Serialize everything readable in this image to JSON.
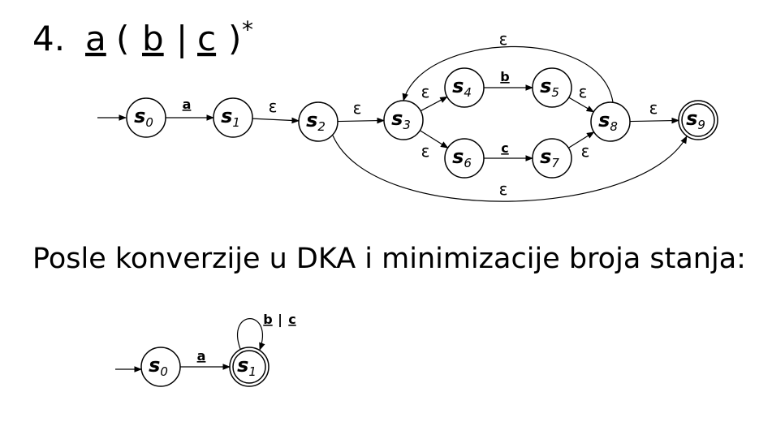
{
  "heading": {
    "number": "4.",
    "expression": [
      "a",
      "(",
      "b",
      "|",
      "c",
      ")"
    ],
    "superscript": "*"
  },
  "nfa": {
    "nodes": [
      {
        "label": "s",
        "index": "0"
      },
      {
        "label": "s",
        "index": "1"
      },
      {
        "label": "s",
        "index": "2"
      },
      {
        "label": "s",
        "index": "3"
      },
      {
        "label": "s",
        "index": "4"
      },
      {
        "label": "s",
        "index": "5"
      },
      {
        "label": "s",
        "index": "6"
      },
      {
        "label": "s",
        "index": "7"
      },
      {
        "label": "s",
        "index": "8"
      },
      {
        "label": "s",
        "index": "9"
      }
    ],
    "edges": [
      "a",
      "ε",
      "ε",
      "ε",
      "b",
      "ε",
      "ε",
      "c",
      "ε",
      "ε",
      "ε",
      "ε"
    ]
  },
  "subtitle": "Posle konverzije u DKA i minimizacije broja stanja:",
  "dfa": {
    "nodes": [
      {
        "label": "s",
        "index": "0"
      },
      {
        "label": "s",
        "index": "1"
      }
    ],
    "edges": [
      [
        "a"
      ],
      [
        "b",
        "|",
        "c"
      ]
    ]
  }
}
